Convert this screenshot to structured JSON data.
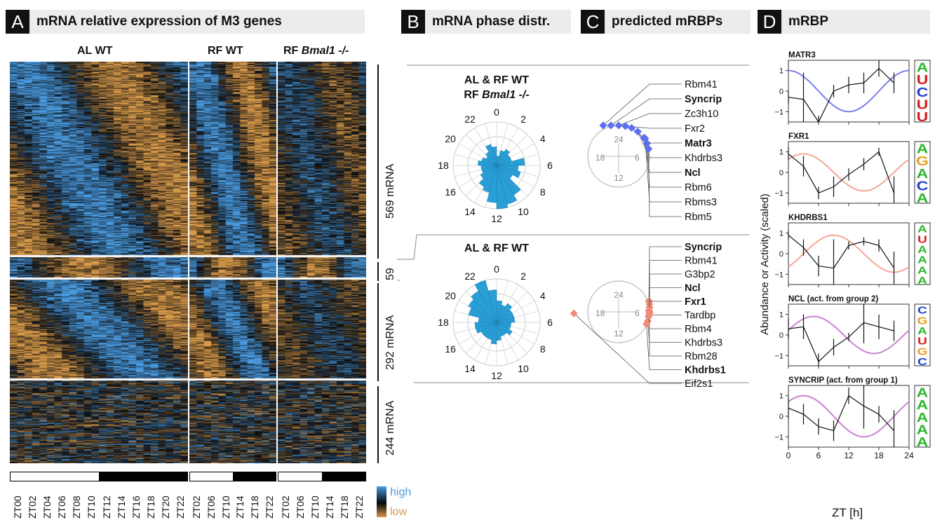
{
  "panels": {
    "A": {
      "letter": "A",
      "title": "mRNA relative expression of M3 genes"
    },
    "B": {
      "letter": "B",
      "title": "mRNA phase distr."
    },
    "C": {
      "letter": "C",
      "title": "predicted mRBPs"
    },
    "D": {
      "letter": "D",
      "title": "mRBP"
    }
  },
  "heatmap": {
    "columns": [
      {
        "label_prefix": "AL WT",
        "label_italic": ""
      },
      {
        "label_prefix": "RF WT",
        "label_italic": ""
      },
      {
        "label_prefix": "RF ",
        "label_italic": "Bmal1 -/-"
      }
    ],
    "groups": [
      {
        "label": "569 mRNA",
        "rows": 569
      },
      {
        "label": "59",
        "rows": 59
      },
      {
        "label": "292 mRNA",
        "rows": 292
      },
      {
        "label": "244 mRNA",
        "rows": 244
      }
    ],
    "zt_labels_al": [
      "ZT00",
      "ZT02",
      "ZT04",
      "ZT06",
      "ZT08",
      "ZT10",
      "ZT12",
      "ZT14",
      "ZT16",
      "ZT18",
      "ZT20",
      "ZT22"
    ],
    "zt_labels_rf": [
      "ZT02",
      "ZT06",
      "ZT10",
      "ZT14",
      "ZT18",
      "ZT22"
    ],
    "zt_labels_bmal": [
      "ZT02",
      "ZT06",
      "ZT10",
      "ZT14",
      "ZT18",
      "ZT22"
    ],
    "legend": {
      "high": "high",
      "low": "low",
      "high_color": "#4a9be0",
      "low_color": "#d89a4a"
    }
  },
  "polar": [
    {
      "title_line1": "AL & RF WT",
      "title_line2_prefix": "RF ",
      "title_line2_italic": "Bmal1 -/-",
      "hours": [
        "0",
        "2",
        "4",
        "6",
        "8",
        "10",
        "12",
        "14",
        "16",
        "18",
        "20",
        "22"
      ],
      "bars": [
        3,
        5,
        6,
        5,
        5,
        9,
        7,
        8,
        6,
        11,
        13,
        14,
        12,
        9,
        8,
        6,
        5,
        5,
        6,
        5,
        4,
        5,
        7,
        6
      ],
      "color": "#2a9ed6"
    },
    {
      "title_line1": "AL & RF WT",
      "title_line2_prefix": "",
      "title_line2_italic": "",
      "hours": [
        "0",
        "2",
        "4",
        "6",
        "8",
        "10",
        "12",
        "14",
        "16",
        "18",
        "20",
        "22"
      ],
      "bars": [
        6,
        5,
        6,
        5,
        5,
        5,
        4,
        4,
        5,
        4,
        4,
        5,
        6,
        5,
        5,
        5,
        6,
        6,
        5,
        8,
        9,
        10,
        12,
        9
      ],
      "color": "#2a9ed6"
    }
  ],
  "mrbp_groups": [
    {
      "hours": [
        "24",
        "18",
        "6",
        "12"
      ],
      "color": "#5f6ff0",
      "proteins": [
        {
          "name": "Rbm41",
          "bold": false
        },
        {
          "name": "Syncrip",
          "bold": true
        },
        {
          "name": "Zc3h10",
          "bold": false
        },
        {
          "name": "Fxr2",
          "bold": false
        },
        {
          "name": "Matr3",
          "bold": true
        },
        {
          "name": "Khdrbs3",
          "bold": false
        },
        {
          "name": "Ncl",
          "bold": true
        },
        {
          "name": "Rbm6",
          "bold": false
        },
        {
          "name": "Rbms3",
          "bold": false
        },
        {
          "name": "Rbm5",
          "bold": false
        }
      ]
    },
    {
      "hours": [
        "24",
        "18",
        "6",
        "12"
      ],
      "color": "#f08a7a",
      "proteins": [
        {
          "name": "Syncrip",
          "bold": true
        },
        {
          "name": "Rbm41",
          "bold": false
        },
        {
          "name": "G3bp2",
          "bold": false
        },
        {
          "name": "Ncl",
          "bold": true
        },
        {
          "name": "Fxr1",
          "bold": true
        },
        {
          "name": "Tardbp",
          "bold": false
        },
        {
          "name": "Rbm4",
          "bold": false
        },
        {
          "name": "Khdrbs3",
          "bold": false
        },
        {
          "name": "Rbm28",
          "bold": false
        },
        {
          "name": "Khdrbs1",
          "bold": true
        },
        {
          "name": "Eif2s1",
          "bold": false
        }
      ]
    }
  ],
  "chart_data": {
    "type": "line",
    "xlabel": "ZT [h]",
    "ylabel": "Abundance or Activity (scaled)",
    "xlim": [
      0,
      24
    ],
    "ylim": [
      -1.5,
      1.5
    ],
    "xticks": [
      "0",
      "6",
      "12",
      "18",
      "24"
    ],
    "yticks": [
      "1",
      "0",
      "−1"
    ],
    "subplots": [
      {
        "title": "MATR3",
        "curve_color": "#7a7ef0",
        "fit": {
          "amplitude": 1,
          "peak_zt": 0
        },
        "x": [
          0,
          3,
          6,
          9,
          12,
          15,
          18,
          21
        ],
        "y": [
          -0.3,
          -0.4,
          -1.5,
          0.0,
          0.3,
          0.4,
          1.1,
          0.4
        ],
        "err": [
          0.3,
          1.3,
          0.3,
          0.3,
          0.4,
          0.5,
          0.4,
          0.5
        ],
        "logo": [
          "A",
          "U",
          "C",
          "U",
          "U"
        ]
      },
      {
        "title": "FXR1",
        "curve_color": "#f5a596",
        "fit": {
          "amplitude": 0.9,
          "peak_zt": 3
        },
        "x": [
          0,
          3,
          6,
          9,
          12,
          15,
          18,
          21
        ],
        "y": [
          0.9,
          0.3,
          -1.0,
          -0.7,
          -0.1,
          0.4,
          1.0,
          -1.0
        ],
        "err": [
          0.3,
          0.5,
          0.3,
          0.5,
          0.3,
          0.3,
          0.2,
          0.8
        ],
        "logo": [
          "A",
          "G",
          "A",
          "C",
          "A"
        ]
      },
      {
        "title": "KHDRBS1",
        "curve_color": "#f5a596",
        "fit": {
          "amplitude": 0.9,
          "peak_zt": 9
        },
        "x": [
          0,
          3,
          6,
          9,
          12,
          15,
          18,
          21
        ],
        "y": [
          0.9,
          0.3,
          -0.6,
          -0.7,
          0.4,
          0.6,
          0.4,
          -0.7
        ],
        "err": [
          0.2,
          0.4,
          0.5,
          1.4,
          0.2,
          0.2,
          0.3,
          0.8
        ],
        "logo": [
          "A",
          "U",
          "A",
          "A",
          "A",
          "A"
        ]
      },
      {
        "title": "NCL (act. from group 2)",
        "curve_color": "#cc80d4",
        "fit": {
          "amplitude": 0.9,
          "peak_zt": 5
        },
        "x": [
          0,
          3,
          6,
          9,
          12,
          15,
          18,
          21
        ],
        "y": [
          0.3,
          0.4,
          -1.3,
          -0.6,
          -0.1,
          0.6,
          0.4,
          0.2
        ],
        "err": [
          0.5,
          0.6,
          0.4,
          0.4,
          0.2,
          1.0,
          0.6,
          0.5
        ],
        "logo": [
          "C",
          "G",
          "A",
          "U",
          "G",
          "C"
        ]
      },
      {
        "title": "SYNCRIP (act. from group 1)",
        "curve_color": "#cc80d4",
        "fit": {
          "amplitude": 1,
          "peak_zt": 3
        },
        "x": [
          0,
          3,
          6,
          9,
          12,
          15,
          18,
          21
        ],
        "y": [
          0.4,
          0.1,
          -0.5,
          -0.7,
          1.0,
          0.5,
          0.1,
          -0.7
        ],
        "err": [
          0.5,
          0.5,
          0.4,
          0.5,
          0.4,
          1.1,
          0.4,
          1.0
        ],
        "logo": [
          "A",
          "A",
          "A",
          "A",
          "A"
        ]
      }
    ]
  }
}
